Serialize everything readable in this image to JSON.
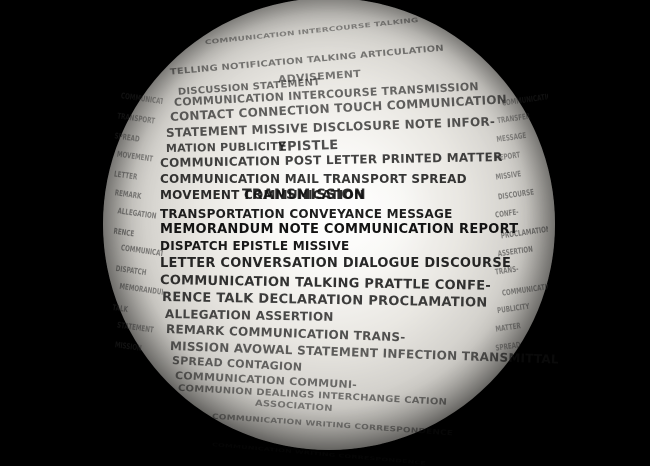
{
  "image": {
    "subject": "word sphere",
    "background_color": "#000000",
    "sphere_color": "#eeede9",
    "text_color": "#111111"
  },
  "lines": [
    "COMMUNICATION INTERCOURSE TALKING",
    "TELLING NOTIFICATION TALKING ARTICULATION",
    "ADVISEMENT",
    "DISCUSSION STATEMENT",
    "COMMUNICATION INTERCOURSE TRANSMISSION",
    "CONTACT CONNECTION TOUCH COMMUNICATION",
    "STATEMENT MISSIVE DISCLOSURE NOTE INFOR-",
    "EPISTLE",
    "MATION PUBLICITY",
    "COMMUNICATION POST LETTER PRINTED MATTER",
    "COMMUNICATION MAIL TRANSPORT SPREAD",
    "TRANSMISSION",
    "MOVEMENT COMMUNICATION",
    "TRANSPORTATION CONVEYANCE MESSAGE",
    "MEMORANDUM NOTE COMMUNICATION REPORT",
    "DISPATCH EPISTLE MISSIVE",
    "LETTER CONVERSATION DIALOGUE DISCOURSE",
    "COMMUNICATION TALKING PRATTLE CONFE-",
    "RENCE TALK DECLARATION PROCLAMATION",
    "ALLEGATION ASSERTION",
    "REMARK COMMUNICATION TRANS-",
    "MISSION AVOWAL STATEMENT INFECTION TRANSMITTAL",
    "SPREAD CONTAGION",
    "COMMUNICATION COMMUNI-",
    "COMMUNION DEALINGS INTERCHANGE CATION",
    "ASSOCIATION",
    "COMMUNICATION WRITING CORRESPONDENCE",
    "COMMUNICATION WRITING CORRESPONDENCE"
  ],
  "side_left": [
    "COMMUNICATION",
    "TRANSPORT",
    "SPREAD",
    "MOVEMENT",
    "LETTER",
    "REMARK",
    "ALLEGATION",
    "RENCE",
    "COMMUNICATION",
    "DISPATCH",
    "MEMORANDUM",
    "TALK",
    "STATEMENT",
    "MISSION"
  ],
  "side_right": [
    "COMMUNICATION",
    "TRANSFER",
    "MESSAGE",
    "REPORT",
    "MISSIVE",
    "DISCOURSE",
    "CONFE-",
    "PROCLAMATION",
    "ASSERTION",
    "TRANS-",
    "COMMUNICATION",
    "PUBLICITY",
    "MATTER",
    "SPREAD"
  ]
}
